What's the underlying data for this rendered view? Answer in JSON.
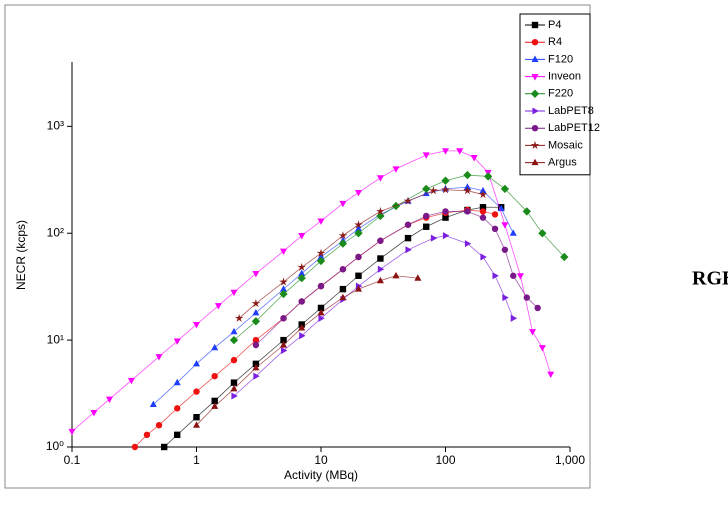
{
  "chart_data": {
    "type": "line",
    "x_label": "Activity (MBq)",
    "y_label": "NECR (kcps)",
    "side_label": "RGB",
    "xscale": "log",
    "yscale": "log",
    "legend": "top-right",
    "xlim": [
      0.1,
      1000
    ],
    "xticks": [
      0.1,
      1,
      10,
      100,
      {
        "value": 1000,
        "label": "1,000"
      }
    ],
    "ylim": [
      1,
      4000
    ],
    "yticks": [
      {
        "value": 1,
        "label": "10⁰"
      },
      {
        "value": 10,
        "label": "10¹"
      },
      {
        "value": 100,
        "label": "10²"
      },
      {
        "value": 1000,
        "label": "10³"
      }
    ],
    "series": [
      {
        "name": "P4",
        "color": "#000000",
        "marker": "square",
        "x": [
          0.55,
          0.7,
          1,
          1.4,
          2,
          3,
          5,
          7,
          10,
          15,
          20,
          30,
          50,
          70,
          100,
          150,
          200,
          280
        ],
        "values": [
          1,
          1.3,
          1.9,
          2.7,
          4,
          6,
          10,
          14,
          20,
          30,
          40,
          58,
          90,
          115,
          140,
          165,
          175,
          175
        ]
      },
      {
        "name": "R4",
        "color": "#ee1111",
        "marker": "circle",
        "x": [
          0.32,
          0.4,
          0.5,
          0.7,
          1,
          1.4,
          2,
          3,
          5,
          7,
          10,
          15,
          20,
          30,
          50,
          70,
          100,
          150,
          200,
          250
        ],
        "values": [
          1,
          1.3,
          1.6,
          2.3,
          3.3,
          4.6,
          6.5,
          10,
          16,
          23,
          32,
          46,
          60,
          85,
          120,
          140,
          155,
          165,
          160,
          150
        ]
      },
      {
        "name": "F120",
        "color": "#1f3fff",
        "marker": "triangle-up",
        "x": [
          0.45,
          0.7,
          1,
          1.4,
          2,
          3,
          5,
          7,
          10,
          15,
          20,
          30,
          50,
          70,
          100,
          150,
          200,
          280,
          350
        ],
        "values": [
          2.5,
          4,
          6,
          8.5,
          12,
          18,
          30,
          42,
          60,
          85,
          110,
          150,
          200,
          235,
          260,
          270,
          250,
          170,
          100
        ]
      },
      {
        "name": "Inveon",
        "color": "#ff00ff",
        "marker": "triangle-down",
        "x": [
          0.1,
          0.15,
          0.2,
          0.3,
          0.5,
          0.7,
          1,
          1.5,
          2,
          3,
          5,
          7,
          10,
          15,
          20,
          30,
          40,
          70,
          100,
          130,
          170,
          220,
          300,
          400,
          500,
          600,
          700
        ],
        "values": [
          1.4,
          2.1,
          2.8,
          4.2,
          7,
          9.8,
          14,
          21,
          28,
          42,
          68,
          95,
          130,
          190,
          240,
          330,
          400,
          540,
          590,
          590,
          510,
          370,
          120,
          40,
          12,
          8.5,
          4.8
        ]
      },
      {
        "name": "F220",
        "color": "#1a8a1a",
        "marker": "diamond",
        "x": [
          2,
          3,
          5,
          7,
          10,
          15,
          20,
          30,
          40,
          70,
          100,
          150,
          220,
          300,
          450,
          600,
          900
        ],
        "values": [
          10,
          15,
          27,
          38,
          55,
          80,
          100,
          145,
          180,
          260,
          310,
          350,
          340,
          260,
          160,
          100,
          60
        ]
      },
      {
        "name": "LabPET8",
        "color": "#7b1fe0",
        "marker": "triangle-right",
        "x": [
          2,
          3,
          5,
          7,
          10,
          15,
          20,
          30,
          50,
          80,
          100,
          150,
          200,
          250,
          300,
          350
        ],
        "values": [
          3,
          4.6,
          8,
          11,
          16,
          24,
          32,
          46,
          70,
          90,
          95,
          80,
          60,
          40,
          25,
          16
        ]
      },
      {
        "name": "LabPET12",
        "color": "#7a1a8a",
        "marker": "circle",
        "x": [
          3,
          5,
          7,
          10,
          15,
          20,
          30,
          50,
          70,
          100,
          150,
          200,
          250,
          300,
          350,
          450,
          550
        ],
        "values": [
          9,
          16,
          23,
          32,
          46,
          60,
          85,
          120,
          145,
          160,
          160,
          140,
          110,
          70,
          40,
          25,
          20
        ]
      },
      {
        "name": "Mosaic",
        "color": "#8b1a1a",
        "marker": "star",
        "x": [
          2.2,
          3,
          5,
          7,
          10,
          15,
          20,
          30,
          50,
          80,
          100,
          150,
          200
        ],
        "values": [
          16,
          22,
          35,
          48,
          65,
          95,
          120,
          160,
          200,
          250,
          255,
          250,
          230
        ]
      },
      {
        "name": "Argus",
        "color": "#8b1010",
        "marker": "triangle-up",
        "x": [
          1,
          1.4,
          2,
          3,
          5,
          7,
          10,
          15,
          20,
          30,
          40,
          60
        ],
        "values": [
          1.6,
          2.4,
          3.5,
          5.5,
          9,
          13,
          18,
          25,
          30,
          36,
          40,
          38
        ]
      }
    ]
  }
}
